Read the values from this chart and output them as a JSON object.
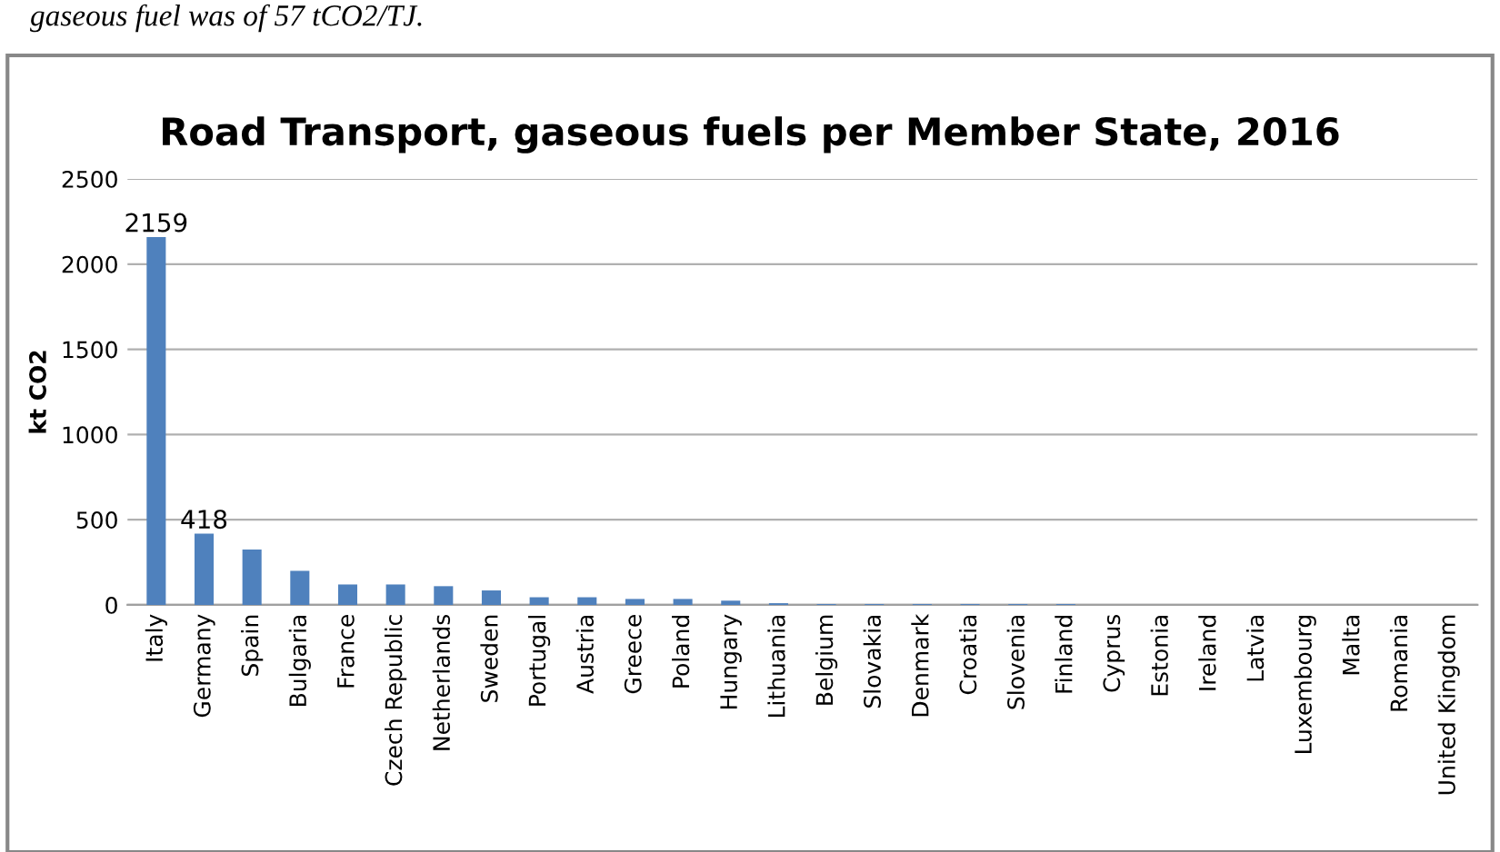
{
  "chart_data": {
    "type": "bar",
    "title": "Road Transport, gaseous fuels per Member State, 2016",
    "ylabel": "kt CO2",
    "annotations": [
      "gaseous fuel was of 57 tCO2/TJ."
    ],
    "categories": [
      "Italy",
      "Germany",
      "Spain",
      "Bulgaria",
      "France",
      "Czech Republic",
      "Netherlands",
      "Sweden",
      "Portugal",
      "Austria",
      "Greece",
      "Poland",
      "Hungary",
      "Lithuania",
      "Belgium",
      "Slovakia",
      "Denmark",
      "Croatia",
      "Slovenia",
      "Finland",
      "Cyprus",
      "Estonia",
      "Ireland",
      "Latvia",
      "Luxembourg",
      "Malta",
      "Romania",
      "United Kingdom"
    ],
    "values": [
      2159,
      418,
      325,
      200,
      120,
      120,
      110,
      85,
      45,
      45,
      35,
      35,
      25,
      10,
      5,
      5,
      5,
      5,
      5,
      5,
      0,
      0,
      0,
      0,
      0,
      0,
      0,
      0
    ],
    "value_labels": [
      "2159",
      "418",
      null,
      null,
      null,
      null,
      null,
      null,
      null,
      null,
      null,
      null,
      null,
      null,
      null,
      null,
      null,
      null,
      null,
      null,
      null,
      null,
      null,
      null,
      null,
      null,
      null,
      null
    ],
    "color": "#4f81bd",
    "ylim": [
      0,
      2500
    ],
    "yticks": [
      0,
      500,
      1000,
      1500,
      2000,
      2500
    ],
    "grid": "y"
  }
}
